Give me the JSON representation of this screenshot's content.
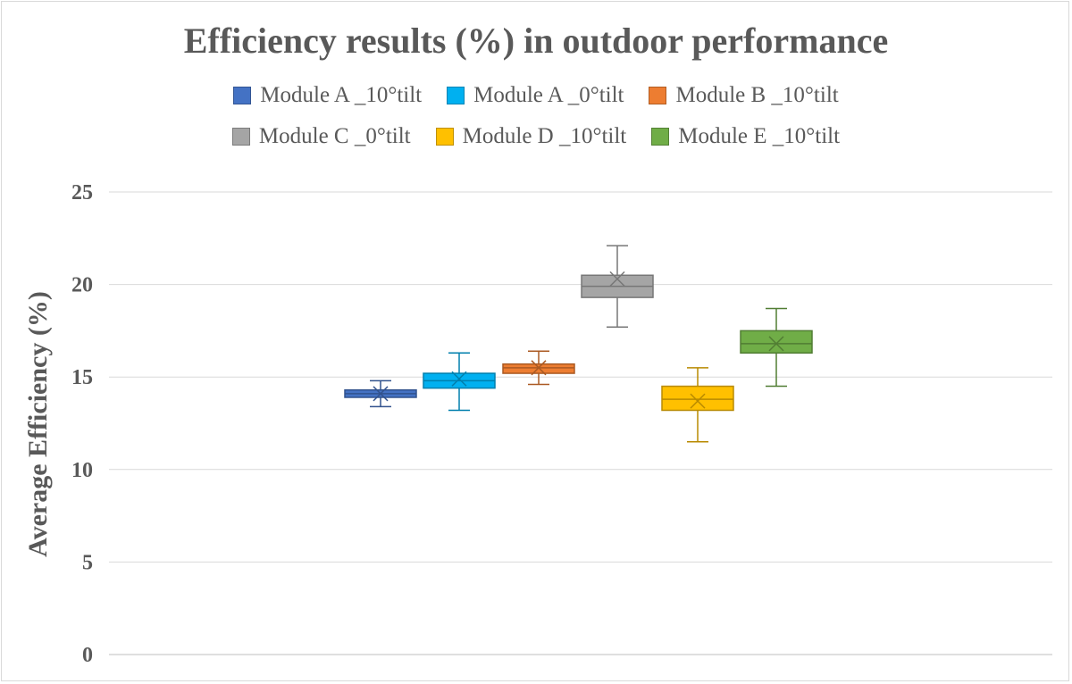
{
  "chart_data": {
    "type": "boxplot",
    "title": "Efficiency results (%) in outdoor performance",
    "xlabel": "",
    "ylabel": "Average Efficiency (%)",
    "ylim": [
      0,
      25
    ],
    "yticks": [
      0,
      5,
      10,
      15,
      20,
      25
    ],
    "grid": true,
    "legend_position": "top",
    "series": [
      {
        "name": "Module A _10°tilt",
        "color": "#4472c4",
        "min": 13.4,
        "q1": 13.9,
        "median": 14.1,
        "q3": 14.3,
        "max": 14.8,
        "mean": 14.1
      },
      {
        "name": "Module A _0°tilt",
        "color": "#00b0f0",
        "min": 13.2,
        "q1": 14.4,
        "median": 14.8,
        "q3": 15.2,
        "max": 16.3,
        "mean": 14.9
      },
      {
        "name": "Module B _10°tilt",
        "color": "#ed7d31",
        "min": 14.6,
        "q1": 15.2,
        "median": 15.5,
        "q3": 15.7,
        "max": 16.4,
        "mean": 15.5
      },
      {
        "name": "Module C _0°tilt",
        "color": "#a5a5a5",
        "min": 17.7,
        "q1": 19.3,
        "median": 19.9,
        "q3": 20.5,
        "max": 22.1,
        "mean": 20.3
      },
      {
        "name": "Module D _10°tilt",
        "color": "#ffc000",
        "min": 11.5,
        "q1": 13.2,
        "median": 13.8,
        "q3": 14.5,
        "max": 15.5,
        "mean": 13.7
      },
      {
        "name": "Module E _10°tilt",
        "color": "#70ad47",
        "min": 14.5,
        "q1": 16.3,
        "median": 16.8,
        "q3": 17.5,
        "max": 18.7,
        "mean": 16.8
      }
    ]
  }
}
